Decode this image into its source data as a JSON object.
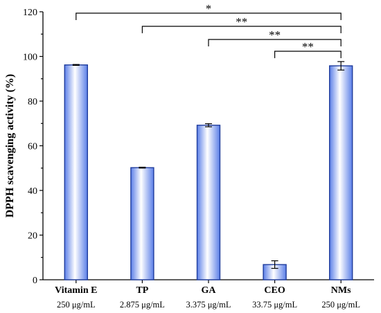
{
  "chart_data": {
    "type": "bar",
    "categories": [
      "Vitamin E",
      "TP",
      "GA",
      "CEO",
      "NMs"
    ],
    "subcategories": [
      "250 μg/mL",
      "2.875 μg/mL",
      "3.375 μg/mL",
      "33.75 μg/mL",
      "250 μg/mL"
    ],
    "values": [
      96.2,
      50.2,
      69.2,
      6.8,
      95.8
    ],
    "errors": [
      0.2,
      0.2,
      0.7,
      1.7,
      1.9
    ],
    "ylabel": "DPPH scavenging activity (%)",
    "xlabel": "",
    "ylim": [
      0,
      120
    ],
    "yticks": [
      0,
      20,
      40,
      60,
      80,
      100,
      120
    ],
    "bar_color": "#6c8ef0",
    "significance": [
      {
        "from": "Vitamin E",
        "to": "NMs",
        "label": "*"
      },
      {
        "from": "TP",
        "to": "NMs",
        "label": "**"
      },
      {
        "from": "GA",
        "to": "NMs",
        "label": "**"
      },
      {
        "from": "CEO",
        "to": "NMs",
        "label": "**"
      }
    ]
  }
}
